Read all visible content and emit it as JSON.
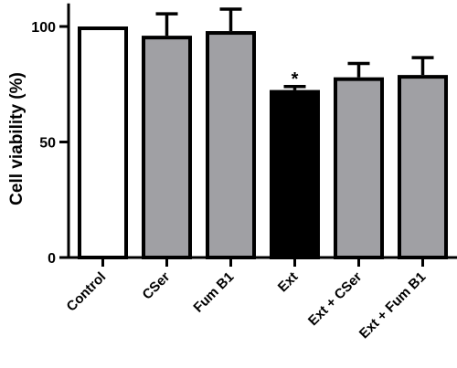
{
  "chart_data": {
    "type": "bar",
    "title": "",
    "xlabel": "",
    "ylabel": "Cell viability (%)",
    "ylim": [
      0,
      110
    ],
    "yticks": [
      0,
      50,
      100
    ],
    "grid": false,
    "legend": "none",
    "categories": [
      "Control",
      "CSer",
      "Fum B1",
      "Ext",
      "Ext + CSer",
      "Ext + Fum B1"
    ],
    "values": [
      100,
      96,
      98,
      72.5,
      78,
      79
    ],
    "errors": [
      0,
      9.5,
      9.5,
      1.5,
      6,
      7.5
    ],
    "fill_colors": [
      "#ffffff",
      "#a0a0a4",
      "#a0a0a4",
      "#000000",
      "#a0a0a4",
      "#a0a0a4"
    ],
    "annotations": [
      {
        "category": "Ext",
        "text": "*"
      }
    ]
  }
}
